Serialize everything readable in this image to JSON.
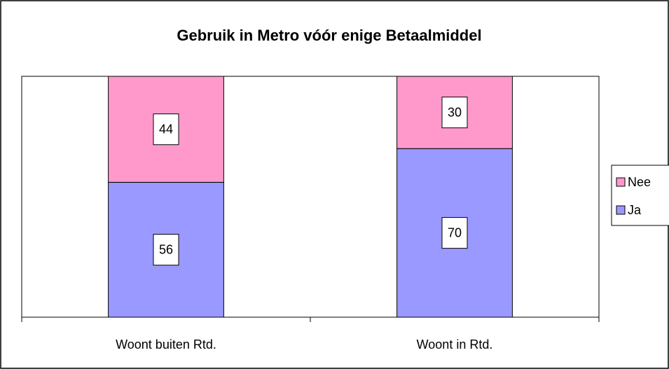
{
  "chart_data": {
    "type": "stacked_bar",
    "title": "Gebruik in Metro vóór enige Betaalmiddel",
    "categories": [
      "Woont buiten Rtd.",
      "Woont in Rtd."
    ],
    "series": [
      {
        "name": "Ja",
        "color": "#9999ff",
        "values": [
          56,
          70
        ]
      },
      {
        "name": "Nee",
        "color": "#ff99cc",
        "values": [
          44,
          30
        ]
      }
    ],
    "ylim": [
      0,
      100
    ],
    "legend": "right"
  }
}
